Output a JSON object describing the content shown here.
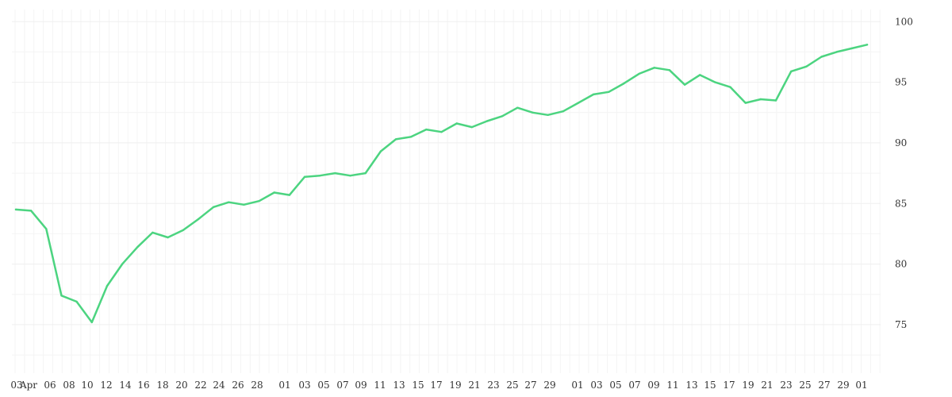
{
  "chart_data": {
    "type": "line",
    "title": "",
    "xlabel": "",
    "ylabel": "",
    "ylim": [
      71,
      101
    ],
    "grid": true,
    "y_ticks": [
      75,
      80,
      85,
      90,
      95,
      100
    ],
    "x_ticks": [
      "03",
      "Apr",
      "06",
      "08",
      "10",
      "12",
      "14",
      "16",
      "18",
      "20",
      "22",
      "24",
      "26",
      "28",
      "01",
      "03",
      "05",
      "07",
      "09",
      "11",
      "13",
      "15",
      "17",
      "19",
      "21",
      "23",
      "25",
      "27",
      "29",
      "01",
      "03",
      "05",
      "07",
      "09",
      "11",
      "13",
      "15",
      "17",
      "19",
      "21",
      "23",
      "25",
      "27",
      "29",
      "01"
    ],
    "colors": {
      "line": "#4cd480",
      "grid": "#efefef",
      "text": "#333333"
    },
    "series": [
      {
        "values": [
          84.5,
          84.4,
          82.9,
          77.4,
          76.9,
          75.2,
          78.2,
          80.0,
          81.4,
          82.6,
          82.2,
          82.8,
          83.7,
          84.7,
          85.1,
          84.9,
          85.2,
          85.9,
          85.7,
          87.2,
          87.3,
          87.5,
          87.3,
          87.5,
          89.3,
          90.3,
          90.5,
          91.1,
          90.9,
          91.6,
          91.3,
          91.8,
          92.2,
          92.9,
          92.5,
          92.3,
          92.6,
          93.3,
          94.0,
          94.2,
          94.9,
          95.7,
          96.2,
          96.0,
          94.8,
          95.6,
          95.0,
          94.6,
          93.3,
          93.6,
          93.5,
          95.9,
          96.3,
          97.1,
          97.5,
          97.8,
          98.1
        ]
      }
    ]
  }
}
